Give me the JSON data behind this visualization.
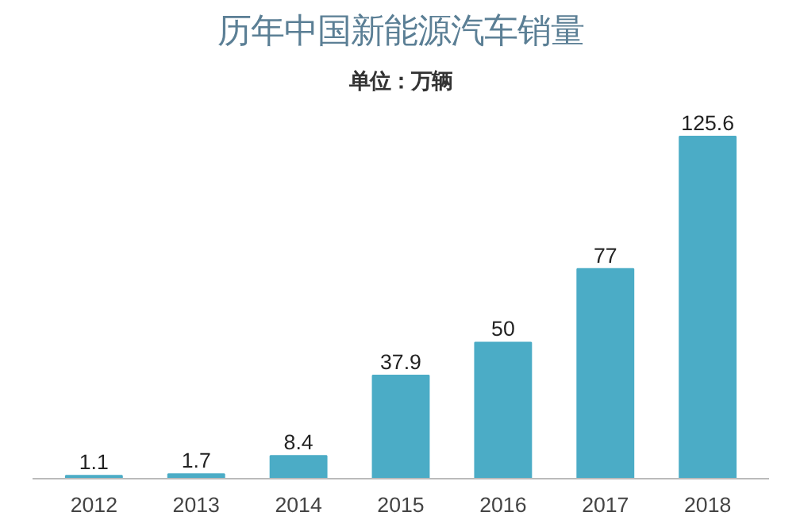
{
  "chart_data": {
    "type": "bar",
    "title": "历年中国新能源汽车销量",
    "subtitle": "单位：万辆",
    "categories": [
      "2012",
      "2013",
      "2014",
      "2015",
      "2016",
      "2017",
      "2018"
    ],
    "values": [
      1.1,
      1.7,
      8.4,
      37.9,
      50,
      77,
      125.6
    ],
    "color": "#4bacc6",
    "data_labels": true,
    "grid": false
  }
}
